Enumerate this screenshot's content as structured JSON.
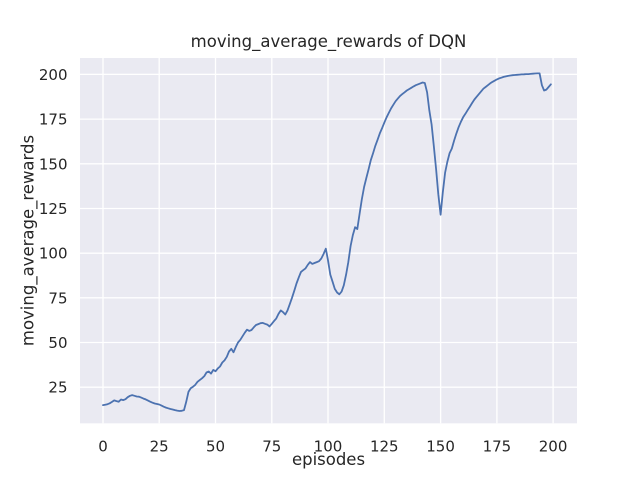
{
  "chart_data": {
    "type": "line",
    "title": "moving_average_rewards of DQN",
    "xlabel": "episodes",
    "ylabel": "moving_average_rewards",
    "grid": true,
    "legend_visible": false,
    "x_ticks": [
      0,
      25,
      50,
      75,
      100,
      125,
      150,
      175,
      200
    ],
    "y_ticks": [
      25,
      50,
      75,
      100,
      125,
      150,
      175,
      200
    ],
    "xlim": [
      -10.2,
      210.6
    ],
    "ylim": [
      4.8,
      209.2
    ],
    "colors": {
      "line": "#4c72b0",
      "plot_background": "#eaeaf2",
      "grid": "#ffffff",
      "text": "#262626",
      "figure_background": "#ffffff"
    },
    "series": [
      {
        "name": "moving_average_rewards",
        "x_start": 0,
        "x_step": 1,
        "values": [
          15.0,
          15.2,
          15.5,
          16.0,
          16.8,
          17.6,
          17.2,
          16.9,
          18.1,
          17.8,
          18.3,
          19.4,
          20.2,
          20.6,
          20.2,
          19.8,
          19.7,
          19.2,
          18.6,
          18.2,
          17.5,
          16.9,
          16.3,
          15.9,
          15.6,
          15.3,
          14.7,
          14.1,
          13.6,
          13.2,
          12.8,
          12.5,
          12.2,
          11.9,
          11.7,
          11.8,
          12.2,
          16.8,
          22.5,
          24.4,
          25.3,
          26.3,
          28.0,
          29.0,
          30.0,
          31.2,
          33.2,
          33.8,
          32.6,
          34.7,
          33.9,
          35.5,
          36.6,
          38.8,
          40.0,
          42.0,
          45.0,
          46.5,
          44.5,
          47.5,
          50.0,
          51.5,
          53.5,
          55.5,
          57.2,
          56.5,
          57.0,
          58.5,
          59.8,
          60.3,
          60.8,
          61.0,
          60.5,
          60.0,
          59.0,
          60.5,
          62.0,
          63.5,
          66.0,
          68.0,
          67.0,
          65.7,
          68.0,
          71.5,
          75.0,
          79.0,
          83.0,
          86.5,
          89.5,
          90.5,
          91.5,
          93.5,
          95.0,
          94.0,
          94.5,
          95.0,
          95.5,
          97.0,
          99.5,
          102.5,
          96.0,
          88.0,
          84.0,
          80.0,
          78.0,
          77.0,
          78.5,
          82.0,
          88.0,
          95.0,
          104.0,
          110.0,
          114.5,
          113.5,
          122.0,
          130.0,
          137.0,
          142.0,
          147.0,
          152.0,
          156.0,
          160.0,
          163.5,
          167.0,
          170.0,
          173.0,
          176.0,
          178.5,
          181.0,
          183.0,
          185.0,
          186.5,
          188.0,
          189.0,
          190.0,
          191.0,
          191.8,
          192.5,
          193.3,
          194.0,
          194.5,
          195.0,
          195.5,
          195.2,
          190.0,
          180.0,
          172.0,
          160.0,
          147.0,
          133.0,
          121.5,
          134.0,
          145.0,
          151.0,
          156.0,
          158.5,
          163.0,
          167.0,
          170.5,
          173.5,
          176.0,
          178.0,
          180.0,
          182.0,
          184.0,
          186.0,
          187.5,
          189.0,
          190.5,
          192.0,
          193.0,
          194.0,
          195.0,
          195.8,
          196.5,
          197.2,
          197.8,
          198.2,
          198.6,
          198.9,
          199.2,
          199.4,
          199.6,
          199.7,
          199.8,
          199.9,
          200.0,
          200.1,
          200.2,
          200.2,
          200.3,
          200.4,
          200.5,
          200.6,
          200.6,
          194.0,
          191.0,
          191.5,
          193.0,
          194.5
        ]
      }
    ]
  }
}
